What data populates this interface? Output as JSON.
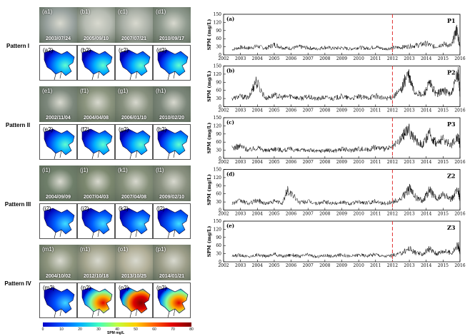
{
  "patterns": [
    {
      "label": "Pattern I",
      "photos": [
        {
          "id": "(a1)",
          "date": "2003/07/24"
        },
        {
          "id": "(b1)",
          "date": "2005/09/10"
        },
        {
          "id": "(c1)",
          "date": "2007/07/21"
        },
        {
          "id": "(d1)",
          "date": "2010/09/17"
        }
      ],
      "maps": [
        {
          "id": "(a2)"
        },
        {
          "id": "(b2)"
        },
        {
          "id": "(c2)"
        },
        {
          "id": "(d2)"
        }
      ],
      "photo_colors": [
        "#9aa3a0",
        "#b6bbb2",
        "#a9afa6",
        "#8f9a8e"
      ],
      "plume": "low"
    },
    {
      "label": "Pattern II",
      "photos": [
        {
          "id": "(e1)",
          "date": "2002/11/04"
        },
        {
          "id": "(f1)",
          "date": "2004/04/08"
        },
        {
          "id": "(g1)",
          "date": "2006/01/10"
        },
        {
          "id": "(h1)",
          "date": "2010/02/20"
        }
      ],
      "maps": [
        {
          "id": "(e2)"
        },
        {
          "id": "(f2)"
        },
        {
          "id": "(g2)"
        },
        {
          "id": "(h2)"
        }
      ],
      "photo_colors": [
        "#7d887c",
        "#8c957f",
        "#87907e",
        "#7b8679"
      ],
      "plume": "low"
    },
    {
      "label": "Pattern III",
      "photos": [
        {
          "id": "(i1)",
          "date": "2004/09/09"
        },
        {
          "id": "(j1)",
          "date": "2007/04/03"
        },
        {
          "id": "(k1)",
          "date": "2007/04/08"
        },
        {
          "id": "(l1)",
          "date": "2009/02/10"
        }
      ],
      "maps": [
        {
          "id": "(i2)"
        },
        {
          "id": "(j2)"
        },
        {
          "id": "(k2)"
        },
        {
          "id": "(l2)"
        }
      ],
      "photo_colors": [
        "#6f7f6a",
        "#7c886f",
        "#86907a",
        "#8a9180"
      ],
      "plume": "none"
    },
    {
      "label": "Pattern IV",
      "photos": [
        {
          "id": "(m1)",
          "date": "2004/10/02"
        },
        {
          "id": "(n1)",
          "date": "2012/10/18"
        },
        {
          "id": "(o1)",
          "date": "2013/10/25"
        },
        {
          "id": "(p1)",
          "date": "2014/01/21"
        }
      ],
      "maps": [
        {
          "id": "(m2)"
        },
        {
          "id": "(n2)"
        },
        {
          "id": "(o2)"
        },
        {
          "id": "(p2)"
        }
      ],
      "photo_colors": [
        "#8e957e",
        "#a5a58e",
        "#b1ae97",
        "#9c9d88"
      ],
      "plume": "high"
    }
  ],
  "colorbar": {
    "ticks": [
      "0",
      "10",
      "20",
      "30",
      "40",
      "50",
      "60",
      "70",
      "80"
    ],
    "unit": "SPM mg/L",
    "min": 0,
    "max": 80
  },
  "chart_data": [
    {
      "type": "line",
      "panel": "(a)",
      "station": "P1",
      "ylabel": "SPM (mg/L)",
      "ylim": [
        0,
        150
      ],
      "yticks": [
        0,
        30,
        60,
        90,
        120,
        150
      ],
      "xlim": [
        2002,
        2016
      ],
      "xticks": [
        2002,
        2003,
        2004,
        2005,
        2006,
        2007,
        2008,
        2009,
        2010,
        2011,
        2012,
        2013,
        2014,
        2015,
        2016
      ],
      "dashed_line_x": 2012,
      "series": [
        {
          "x": [
            2002.5,
            2003,
            2003.5,
            2004,
            2004.5,
            2005,
            2005.5,
            2006,
            2006.5,
            2007,
            2007.5,
            2008,
            2008.5,
            2009,
            2009.5,
            2010,
            2010.5,
            2011,
            2011.5,
            2012,
            2012.5,
            2013,
            2013.5,
            2014,
            2014.5,
            2015,
            2015.5,
            2015.8,
            2016
          ],
          "values": [
            20,
            28,
            25,
            32,
            24,
            38,
            27,
            24,
            30,
            26,
            22,
            28,
            24,
            26,
            22,
            28,
            24,
            30,
            22,
            26,
            28,
            32,
            36,
            42,
            30,
            40,
            34,
            95,
            30
          ]
        }
      ]
    },
    {
      "type": "line",
      "panel": "(b)",
      "station": "P2",
      "ylabel": "SPM (mg/L)",
      "ylim": [
        0,
        150
      ],
      "yticks": [
        0,
        30,
        60,
        90,
        120,
        150
      ],
      "xlim": [
        2002,
        2016
      ],
      "xticks": [
        2002,
        2003,
        2004,
        2005,
        2006,
        2007,
        2008,
        2009,
        2010,
        2011,
        2012,
        2013,
        2014,
        2015,
        2016
      ],
      "dashed_line_x": 2012,
      "series": [
        {
          "x": [
            2002.5,
            2003,
            2003.5,
            2003.9,
            2004.5,
            2005,
            2005.5,
            2006,
            2006.5,
            2007,
            2007.5,
            2008,
            2008.5,
            2009,
            2009.5,
            2010,
            2010.5,
            2011,
            2011.5,
            2012,
            2012.5,
            2012.9,
            2013.3,
            2013.8,
            2014.2,
            2014.6,
            2015,
            2015.5,
            2015.9,
            2016
          ],
          "values": [
            30,
            38,
            32,
            95,
            30,
            42,
            34,
            40,
            30,
            36,
            28,
            34,
            30,
            38,
            30,
            36,
            32,
            40,
            30,
            34,
            60,
            120,
            55,
            40,
            85,
            45,
            60,
            45,
            125,
            40
          ]
        }
      ]
    },
    {
      "type": "line",
      "panel": "(c)",
      "station": "P3",
      "ylabel": "SPM (mg/L)",
      "ylim": [
        0,
        150
      ],
      "yticks": [
        0,
        30,
        60,
        90,
        120,
        150
      ],
      "xlim": [
        2002,
        2016
      ],
      "xticks": [
        2002,
        2003,
        2004,
        2005,
        2006,
        2007,
        2008,
        2009,
        2010,
        2011,
        2012,
        2013,
        2014,
        2015,
        2016
      ],
      "dashed_line_x": 2012,
      "series": [
        {
          "x": [
            2002.5,
            2003,
            2003.5,
            2004,
            2004.5,
            2005,
            2005.5,
            2006,
            2006.5,
            2007,
            2007.5,
            2008,
            2008.5,
            2009,
            2009.5,
            2010,
            2010.5,
            2011,
            2011.5,
            2012,
            2012.5,
            2012.9,
            2013.4,
            2013.8,
            2014.2,
            2014.6,
            2015,
            2015.5,
            2015.9,
            2016
          ],
          "values": [
            38,
            45,
            30,
            40,
            28,
            36,
            30,
            34,
            28,
            32,
            26,
            30,
            28,
            34,
            30,
            36,
            32,
            42,
            34,
            40,
            70,
            110,
            65,
            50,
            90,
            55,
            70,
            50,
            85,
            45
          ]
        }
      ]
    },
    {
      "type": "line",
      "panel": "(d)",
      "station": "Z2",
      "ylabel": "SPM (mg/L)",
      "ylim": [
        0,
        150
      ],
      "yticks": [
        0,
        30,
        60,
        90,
        120,
        150
      ],
      "xlim": [
        2002,
        2016
      ],
      "xticks": [
        2002,
        2003,
        2004,
        2005,
        2006,
        2007,
        2008,
        2009,
        2010,
        2011,
        2012,
        2013,
        2014,
        2015,
        2016
      ],
      "dashed_line_x": 2012,
      "series": [
        {
          "x": [
            2002.5,
            2003,
            2003.5,
            2004,
            2004.5,
            2005,
            2005.5,
            2005.8,
            2006.5,
            2007,
            2007.5,
            2008,
            2008.5,
            2009,
            2009.5,
            2010,
            2010.5,
            2011,
            2011.5,
            2012,
            2012.5,
            2013,
            2013.4,
            2013.8,
            2014.2,
            2014.6,
            2015,
            2015.5,
            2015.9,
            2016
          ],
          "values": [
            26,
            34,
            24,
            36,
            24,
            32,
            26,
            75,
            28,
            32,
            24,
            30,
            24,
            30,
            24,
            30,
            26,
            34,
            24,
            30,
            40,
            80,
            45,
            35,
            75,
            40,
            55,
            40,
            75,
            35
          ]
        }
      ]
    },
    {
      "type": "line",
      "panel": "(e)",
      "station": "Z3",
      "ylabel": "SPM (mg/L)",
      "ylim": [
        0,
        150
      ],
      "yticks": [
        0,
        30,
        60,
        90,
        120,
        150
      ],
      "xlim": [
        2002,
        2016
      ],
      "xticks": [
        2002,
        2003,
        2004,
        2005,
        2006,
        2007,
        2008,
        2009,
        2010,
        2011,
        2012,
        2013,
        2014,
        2015,
        2016
      ],
      "dashed_line_x": 2012,
      "xticklabels": [
        "2002",
        "2003",
        "2004",
        "2005",
        "2006",
        "2007",
        "2008",
        "2009",
        "2010",
        "2011",
        "2012",
        "2013",
        "2014",
        "2015",
        "2016"
      ],
      "series": [
        {
          "x": [
            2002.5,
            2003,
            2003.5,
            2004,
            2004.5,
            2005,
            2005.5,
            2006,
            2006.5,
            2007,
            2007.5,
            2008,
            2008.5,
            2009,
            2009.5,
            2010,
            2010.5,
            2011,
            2011.5,
            2012,
            2012.5,
            2013,
            2013.4,
            2013.8,
            2014.2,
            2014.6,
            2015,
            2015.5,
            2015.9,
            2016
          ],
          "values": [
            20,
            26,
            18,
            26,
            20,
            28,
            20,
            26,
            20,
            26,
            18,
            24,
            20,
            26,
            20,
            26,
            22,
            28,
            20,
            24,
            30,
            50,
            32,
            28,
            48,
            30,
            40,
            32,
            62,
            30
          ]
        }
      ]
    }
  ]
}
